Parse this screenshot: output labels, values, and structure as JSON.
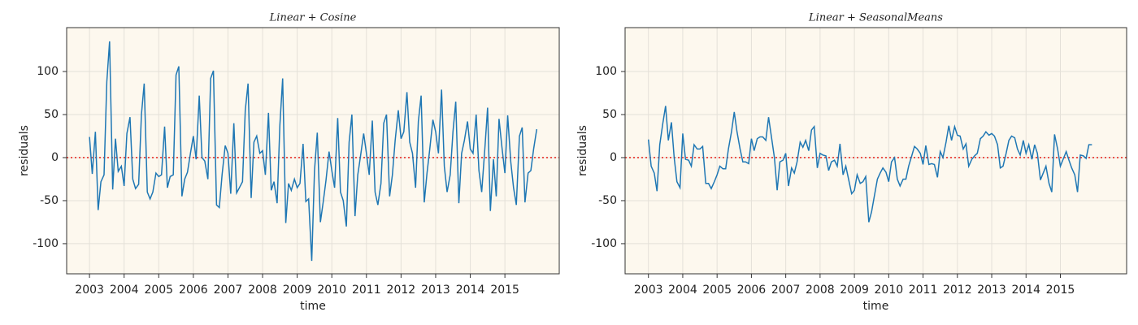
{
  "chart_data": [
    {
      "type": "line",
      "title": "Linear + Cosine",
      "xlabel": "time",
      "ylabel": "residuals",
      "x": [
        2003,
        2003.08,
        2003.17,
        2003.25,
        2003.33,
        2003.42,
        2003.5,
        2003.58,
        2003.67,
        2003.75,
        2003.83,
        2003.92,
        2004,
        2004.08,
        2004.17,
        2004.25,
        2004.33,
        2004.42,
        2004.5,
        2004.58,
        2004.67,
        2004.75,
        2004.83,
        2004.92,
        2005,
        2005.08,
        2005.17,
        2005.25,
        2005.33,
        2005.42,
        2005.5,
        2005.58,
        2005.67,
        2005.75,
        2005.83,
        2005.92,
        2006,
        2006.08,
        2006.17,
        2006.25,
        2006.33,
        2006.42,
        2006.5,
        2006.58,
        2006.67,
        2006.75,
        2006.83,
        2006.92,
        2007,
        2007.08,
        2007.17,
        2007.25,
        2007.33,
        2007.42,
        2007.5,
        2007.58,
        2007.67,
        2007.75,
        2007.83,
        2007.92,
        2008,
        2008.08,
        2008.17,
        2008.25,
        2008.33,
        2008.42,
        2008.5,
        2008.58,
        2008.67,
        2008.75,
        2008.83,
        2008.92,
        2009,
        2009.08,
        2009.17,
        2009.25,
        2009.33,
        2009.42,
        2009.5,
        2009.58,
        2009.67,
        2009.75,
        2009.83,
        2009.92,
        2010,
        2010.08,
        2010.17,
        2010.25,
        2010.33,
        2010.42,
        2010.5,
        2010.58,
        2010.67,
        2010.75,
        2010.83,
        2010.92,
        2011,
        2011.08,
        2011.17,
        2011.25,
        2011.33,
        2011.42,
        2011.5,
        2011.58,
        2011.67,
        2011.75,
        2011.83,
        2011.92,
        2012,
        2012.08,
        2012.17,
        2012.25,
        2012.33,
        2012.42,
        2012.5,
        2012.58,
        2012.67,
        2012.75,
        2012.83,
        2012.92,
        2013,
        2013.08,
        2013.17,
        2013.25,
        2013.33,
        2013.42,
        2013.5,
        2013.58,
        2013.67,
        2013.75,
        2013.83,
        2013.92,
        2014,
        2014.08,
        2014.17,
        2014.25,
        2014.33,
        2014.42,
        2014.5,
        2014.58,
        2014.67,
        2014.75,
        2014.83,
        2014.92,
        2015,
        2015.08,
        2015.17,
        2015.25,
        2015.33,
        2015.42,
        2015.5,
        2015.58,
        2015.67,
        2015.75,
        2015.83,
        2015.92
      ],
      "series": [
        {
          "color": "#1f77b4",
          "values": [
            24,
            -19,
            30,
            -61,
            -28,
            -20,
            88,
            135,
            -37,
            22,
            -16,
            -10,
            -33,
            28,
            47,
            -25,
            -36,
            -31,
            50,
            86,
            -40,
            -48,
            -40,
            -18,
            -22,
            -20,
            36,
            -35,
            -22,
            -20,
            96,
            106,
            -45,
            -25,
            -17,
            6,
            25,
            -2,
            72,
            0,
            -4,
            -25,
            92,
            101,
            -55,
            -58,
            -20,
            14,
            5,
            -42,
            40,
            -41,
            -35,
            -28,
            55,
            86,
            -47,
            18,
            25,
            5,
            8,
            -20,
            52,
            -38,
            -28,
            -53,
            38,
            92,
            -76,
            -30,
            -38,
            -25,
            -35,
            -30,
            16,
            -51,
            -48,
            -120,
            -15,
            29,
            -75,
            -52,
            -27,
            7,
            -15,
            -35,
            46,
            -40,
            -50,
            -80,
            18,
            50,
            -68,
            -20,
            2,
            28,
            5,
            -20,
            43,
            -40,
            -55,
            -30,
            40,
            50,
            -45,
            -20,
            20,
            55,
            22,
            30,
            76,
            18,
            5,
            -35,
            42,
            72,
            -52,
            -18,
            10,
            44,
            30,
            5,
            79,
            -10,
            -40,
            -20,
            30,
            65,
            -53,
            5,
            20,
            42,
            10,
            5,
            50,
            -15,
            -40,
            10,
            58,
            -62,
            -2,
            -45,
            45,
            10,
            -18,
            49,
            -5,
            -35,
            -55,
            25,
            35,
            -52,
            -18,
            -15,
            10,
            33
          ]
        }
      ],
      "hline": 0,
      "hline_color": "#e8302a",
      "xlim": [
        2002.34,
        2016.57
      ],
      "xticks": [
        2003,
        2004,
        2005,
        2006,
        2007,
        2008,
        2009,
        2010,
        2011,
        2012,
        2013,
        2014,
        2015
      ],
      "ylim": [
        -135,
        151
      ],
      "yticks": [
        -100,
        -50,
        0,
        50,
        100
      ],
      "grid": true
    },
    {
      "type": "line",
      "title": "Linear + SeasonalMeans",
      "xlabel": "time",
      "ylabel": "residuals",
      "x": [
        2003,
        2003.08,
        2003.17,
        2003.25,
        2003.33,
        2003.42,
        2003.5,
        2003.58,
        2003.67,
        2003.75,
        2003.83,
        2003.92,
        2004,
        2004.08,
        2004.17,
        2004.25,
        2004.33,
        2004.42,
        2004.5,
        2004.58,
        2004.67,
        2004.75,
        2004.83,
        2004.92,
        2005,
        2005.08,
        2005.17,
        2005.25,
        2005.33,
        2005.42,
        2005.5,
        2005.58,
        2005.67,
        2005.75,
        2005.83,
        2005.92,
        2006,
        2006.08,
        2006.17,
        2006.25,
        2006.33,
        2006.42,
        2006.5,
        2006.58,
        2006.67,
        2006.75,
        2006.83,
        2006.92,
        2007,
        2007.08,
        2007.17,
        2007.25,
        2007.33,
        2007.42,
        2007.5,
        2007.58,
        2007.67,
        2007.75,
        2007.83,
        2007.92,
        2008,
        2008.08,
        2008.17,
        2008.25,
        2008.33,
        2008.42,
        2008.5,
        2008.58,
        2008.67,
        2008.75,
        2008.83,
        2008.92,
        2009,
        2009.08,
        2009.17,
        2009.25,
        2009.33,
        2009.42,
        2009.5,
        2009.58,
        2009.67,
        2009.75,
        2009.83,
        2009.92,
        2010,
        2010.08,
        2010.17,
        2010.25,
        2010.33,
        2010.42,
        2010.5,
        2010.58,
        2010.67,
        2010.75,
        2010.83,
        2010.92,
        2011,
        2011.08,
        2011.17,
        2011.25,
        2011.33,
        2011.42,
        2011.5,
        2011.58,
        2011.67,
        2011.75,
        2011.83,
        2011.92,
        2012,
        2012.08,
        2012.17,
        2012.25,
        2012.33,
        2012.42,
        2012.5,
        2012.58,
        2012.67,
        2012.75,
        2012.83,
        2012.92,
        2013,
        2013.08,
        2013.17,
        2013.25,
        2013.33,
        2013.42,
        2013.5,
        2013.58,
        2013.67,
        2013.75,
        2013.83,
        2013.92,
        2014,
        2014.08,
        2014.17,
        2014.25,
        2014.33,
        2014.42,
        2014.5,
        2014.58,
        2014.67,
        2014.75,
        2014.83,
        2014.92,
        2015,
        2015.08,
        2015.17,
        2015.25,
        2015.33,
        2015.42,
        2015.5,
        2015.58,
        2015.67,
        2015.75,
        2015.83,
        2015.92
      ],
      "series": [
        {
          "color": "#1f77b4",
          "values": [
            21,
            -10,
            -18,
            -39,
            15,
            40,
            60,
            20,
            41,
            0,
            -28,
            -35,
            28,
            -2,
            -3,
            -10,
            15,
            10,
            10,
            13,
            -30,
            -30,
            -36,
            -28,
            -20,
            -10,
            -13,
            -13,
            10,
            30,
            53,
            30,
            10,
            -5,
            -5,
            -7,
            22,
            8,
            22,
            24,
            24,
            20,
            47,
            25,
            0,
            -38,
            -5,
            -3,
            5,
            -33,
            -12,
            -18,
            -5,
            18,
            12,
            20,
            8,
            32,
            36,
            -12,
            5,
            3,
            2,
            -15,
            -5,
            -3,
            -10,
            16,
            -20,
            -10,
            -25,
            -42,
            -38,
            -20,
            -30,
            -28,
            -22,
            -75,
            -63,
            -45,
            -25,
            -18,
            -12,
            -17,
            -28,
            -5,
            0,
            -25,
            -33,
            -25,
            -25,
            -10,
            2,
            13,
            10,
            5,
            -8,
            14,
            -8,
            -7,
            -8,
            -23,
            7,
            0,
            18,
            37,
            20,
            36,
            26,
            25,
            10,
            16,
            -10,
            -2,
            2,
            5,
            22,
            25,
            30,
            26,
            28,
            25,
            15,
            -12,
            -10,
            5,
            20,
            25,
            23,
            10,
            3,
            20,
            5,
            15,
            -2,
            15,
            5,
            -26,
            -18,
            -10,
            -30,
            -40,
            27,
            10,
            -10,
            -2,
            7,
            -3,
            -12,
            -20,
            -40,
            3,
            2,
            -1,
            15,
            15
          ]
        }
      ],
      "hline": 0,
      "hline_color": "#e8302a",
      "xlim": [
        2002.32,
        2016.93
      ],
      "xticks": [
        2003,
        2004,
        2005,
        2006,
        2007,
        2008,
        2009,
        2010,
        2011,
        2012,
        2013,
        2014,
        2015
      ],
      "ylim": [
        -135,
        151
      ],
      "yticks": [
        -100,
        -50,
        0,
        50,
        100
      ],
      "grid": true
    }
  ]
}
